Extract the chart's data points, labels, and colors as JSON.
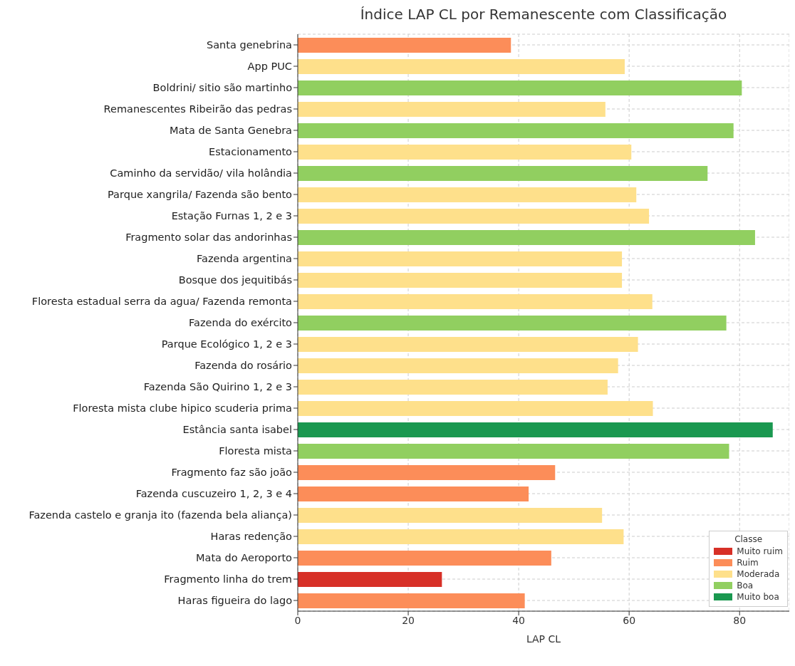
{
  "chart_data": {
    "type": "bar",
    "orientation": "horizontal",
    "stacked": true,
    "title": "Índice LAP CL por Remanescente com Classificação",
    "xlabel": "LAP CL",
    "legend_title": "Classe",
    "legend": "bottom right",
    "grid": true,
    "categories": [
      "Santa genebrina",
      "App PUC",
      "Boldrini/ sitio são martinho",
      "Remanescentes Ribeirão das pedras",
      "Mata de Santa Genebra",
      "Estacionamento",
      "Caminho da servidão/ vila holândia",
      "Parque xangrila/ Fazenda são bento",
      "Estação Furnas 1, 2 e 3",
      "Fragmento solar das andorinhas",
      "Fazenda argentina",
      "Bosque dos jequitibás",
      "Floresta estadual serra da agua/ Fazenda remonta",
      "Fazenda do exército",
      "Parque Ecológico 1, 2 e 3",
      "Fazenda do rosário",
      "Fazenda São Quirino 1, 2 e 3",
      "Floresta mista clube hipico scuderia prima",
      "Estância santa isabel",
      "Floresta mista",
      "Fragmento faz são joão",
      "Fazenda cuscuzeiro 1, 2, 3 e 4",
      "Fazenda castelo e granja ito (fazenda bela aliança)",
      "Haras redenção",
      "Mata do Aeroporto",
      "Fragmento linha do trem",
      "Haras figueira do lago"
    ],
    "series": [
      {
        "name": "Muito ruim",
        "color": "#d73027",
        "values": [
          null,
          null,
          null,
          null,
          null,
          null,
          null,
          null,
          null,
          null,
          null,
          null,
          null,
          null,
          null,
          null,
          null,
          null,
          null,
          null,
          null,
          null,
          null,
          null,
          null,
          26.1,
          null
        ]
      },
      {
        "name": "Ruim",
        "color": "#fc8d59",
        "values": [
          38.6,
          null,
          null,
          null,
          null,
          null,
          null,
          null,
          null,
          null,
          null,
          null,
          null,
          null,
          null,
          null,
          null,
          null,
          null,
          null,
          46.6,
          41.8,
          null,
          null,
          45.9,
          null,
          41.1
        ]
      },
      {
        "name": "Moderada",
        "color": "#fee08b",
        "values": [
          null,
          59.2,
          null,
          55.7,
          null,
          60.4,
          null,
          61.3,
          63.6,
          null,
          58.7,
          58.7,
          64.2,
          null,
          61.6,
          58.0,
          56.1,
          64.3,
          null,
          null,
          null,
          null,
          55.1,
          59.0,
          null,
          null,
          null
        ]
      },
      {
        "name": "Boa",
        "color": "#91cf60",
        "values": [
          null,
          null,
          80.4,
          null,
          78.9,
          null,
          74.2,
          null,
          null,
          82.8,
          null,
          null,
          null,
          77.6,
          null,
          null,
          null,
          null,
          null,
          78.1,
          null,
          null,
          null,
          null,
          null,
          null,
          null
        ]
      },
      {
        "name": "Muito boa",
        "color": "#1a9850",
        "values": [
          null,
          null,
          null,
          null,
          null,
          null,
          null,
          null,
          null,
          null,
          null,
          null,
          null,
          null,
          null,
          null,
          null,
          null,
          86.0,
          null,
          null,
          null,
          null,
          null,
          null,
          null,
          null
        ]
      }
    ],
    "xlim": [
      0,
      89
    ],
    "xticks": [
      0,
      20,
      40,
      60,
      80
    ]
  }
}
